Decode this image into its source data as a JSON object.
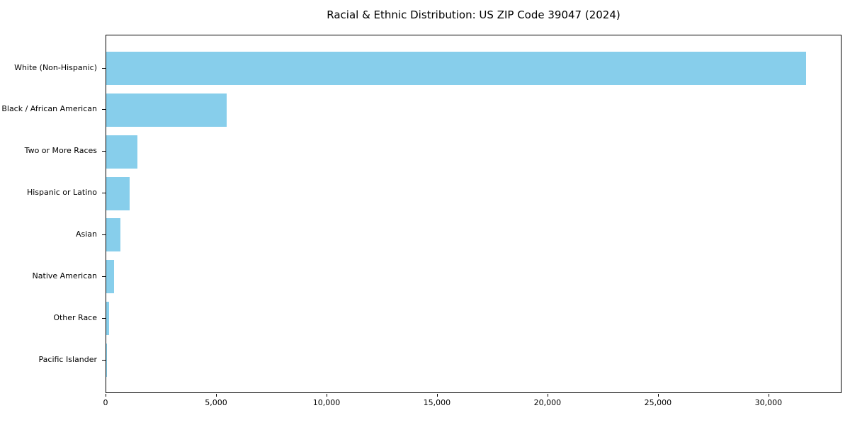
{
  "chart_data": {
    "type": "bar",
    "orientation": "horizontal",
    "title": "Racial & Ethnic Distribution: US ZIP Code 39047 (2024)",
    "xlabel": "",
    "ylabel": "",
    "categories": [
      "White (Non-Hispanic)",
      "Black / African American",
      "Two or More Races",
      "Hispanic or Latino",
      "Asian",
      "Native American",
      "Other Race",
      "Pacific Islander"
    ],
    "values": [
      31720,
      5450,
      1410,
      1060,
      640,
      350,
      125,
      15
    ],
    "xlim": [
      0,
      33306
    ],
    "xticks": [
      0,
      5000,
      10000,
      15000,
      20000,
      25000,
      30000
    ],
    "xtick_labels": [
      "0",
      "5,000",
      "10,000",
      "15,000",
      "20,000",
      "25,000",
      "30,000"
    ],
    "bar_color": "#87CEEB",
    "axis_color": "#000000",
    "background_color": "#FFFFFF",
    "grid": false,
    "legend": null
  }
}
